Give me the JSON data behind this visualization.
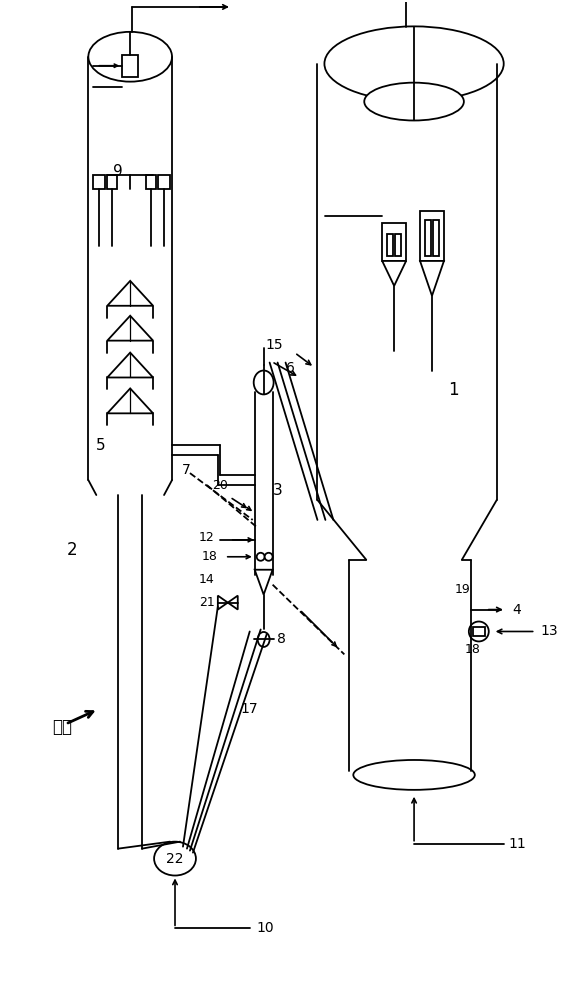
{
  "bg_color": "#ffffff",
  "lc": "#000000",
  "figsize": [
    5.62,
    10.0
  ],
  "dpi": 100
}
